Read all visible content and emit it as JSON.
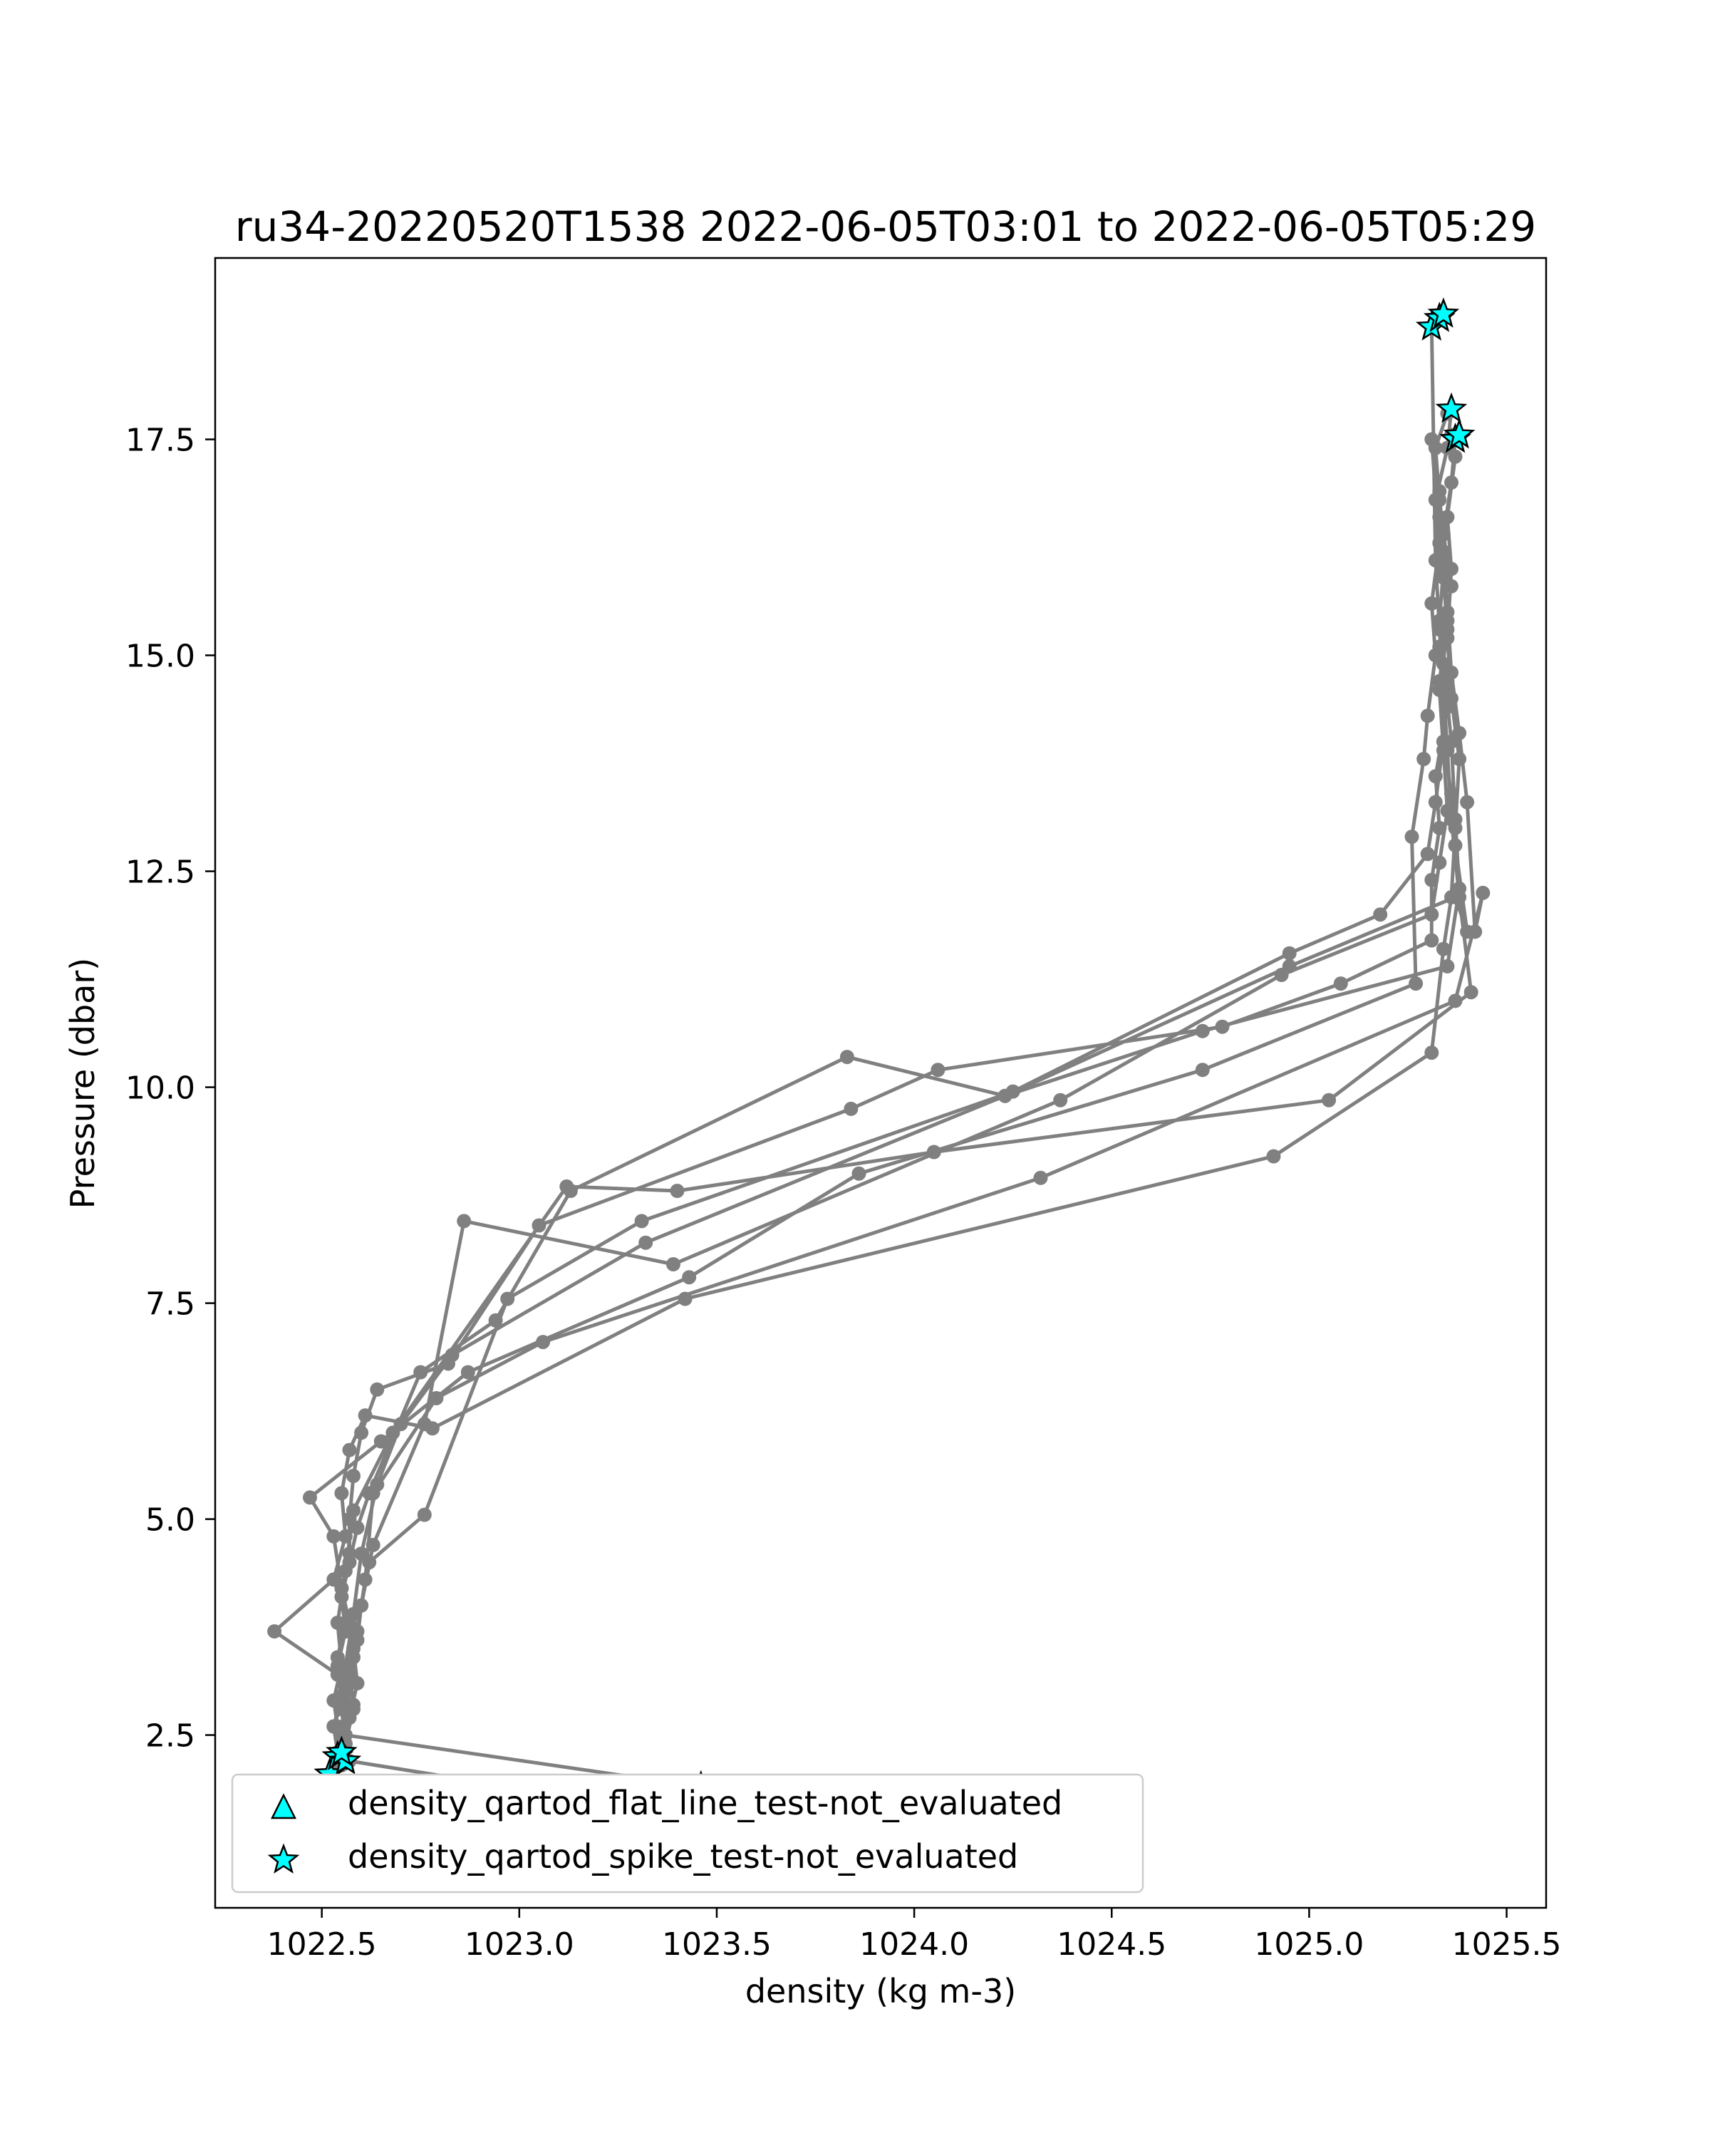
{
  "chart_data": {
    "type": "line",
    "title": "ru34-20220520T1538 2022-06-05T03:01 to 2022-06-05T05:29",
    "xlabel": "density (kg m-3)",
    "ylabel": "Pressure (dbar)",
    "xlim": [
      1022.23,
      1025.6
    ],
    "ylim": [
      19.6,
      0.5
    ],
    "y_inverted": true,
    "xticks": [
      "1022.5",
      "1023.0",
      "1023.5",
      "1024.0",
      "1024.5",
      "1025.0",
      "1025.5"
    ],
    "yticks": [
      "2.5",
      "5.0",
      "7.5",
      "10.0",
      "12.5",
      "15.0",
      "17.5"
    ],
    "legend": [
      {
        "label": "density_qartod_flat_line_test-not_evaluated",
        "marker": "triangle"
      },
      {
        "label": "density_qartod_spike_test-not_evaluated",
        "marker": "star"
      }
    ],
    "legend_position": "lower-left",
    "colors": {
      "profile": "#808080",
      "flag": "#00ffff",
      "flag_edge": "#000000"
    },
    "profiles": [
      {
        "x": [
          1023.32,
          1022.57,
          1022.56,
          1022.55,
          1022.56,
          1022.58,
          1022.57,
          1022.55,
          1022.57,
          1022.57,
          1022.58,
          1022.6,
          1022.64,
          1022.82,
          1023.05,
          1023.84,
          1024.06,
          1024.78,
          1025.08,
          1025.31,
          1025.31,
          1025.33,
          1025.32,
          1025.35,
          1025.33,
          1025.36,
          1025.34,
          1025.36,
          1025.37
        ],
        "y": [
          1.65,
          2.2,
          2.4,
          2.8,
          3.1,
          3.4,
          3.8,
          4.2,
          4.6,
          5.0,
          5.5,
          6.0,
          6.5,
          6.8,
          8.4,
          9.75,
          10.2,
          10.7,
          11.2,
          11.7,
          12.4,
          13.0,
          13.6,
          14.4,
          15.1,
          15.8,
          16.4,
          17.0,
          17.5
        ]
      },
      {
        "x": [
          1023.46,
          1022.56,
          1022.55,
          1022.54,
          1022.56,
          1022.55,
          1022.57,
          1022.59,
          1022.62,
          1022.75,
          1022.94,
          1023.13,
          1023.83,
          1024.23,
          1024.95,
          1025.37,
          1025.4,
          1025.37,
          1025.36,
          1025.34,
          1025.35,
          1025.33,
          1025.34,
          1025.32,
          1025.35,
          1025.36
        ],
        "y": [
          1.9,
          2.5,
          2.9,
          3.3,
          3.7,
          4.1,
          4.5,
          4.9,
          5.3,
          6.7,
          7.3,
          8.8,
          10.35,
          9.9,
          11.4,
          12.2,
          11.8,
          12.8,
          13.4,
          14.0,
          14.7,
          15.4,
          16.0,
          16.8,
          17.4,
          17.85
        ]
      },
      {
        "x": [
          1022.5,
          1022.55,
          1022.54,
          1022.53,
          1022.55,
          1022.54,
          1022.56,
          1022.58,
          1022.68,
          1023.12,
          1023.4,
          1024.05,
          1025.05,
          1025.41,
          1025.38,
          1025.36,
          1025.35,
          1025.34,
          1025.33,
          1025.32,
          1025.31,
          1025.34
        ],
        "y": [
          1.85,
          2.15,
          2.6,
          2.9,
          3.3,
          3.8,
          4.4,
          5.1,
          6.0,
          8.85,
          8.8,
          9.25,
          9.85,
          11.1,
          12.2,
          13.1,
          13.9,
          14.6,
          15.3,
          16.1,
          18.8,
          18.9
        ]
      },
      {
        "x": [
          1022.52,
          1022.54,
          1022.53,
          1022.56,
          1022.54,
          1022.38,
          1022.53,
          1022.56,
          1022.55,
          1022.57,
          1022.61,
          1022.78,
          1023.42,
          1024.91,
          1025.31,
          1025.34,
          1025.36,
          1025.37,
          1025.38,
          1025.36,
          1025.35,
          1025.36,
          1025.35,
          1025.37,
          1025.36
        ],
        "y": [
          2.05,
          2.3,
          2.6,
          3.0,
          3.2,
          3.7,
          4.3,
          4.8,
          5.3,
          5.8,
          6.2,
          6.05,
          7.55,
          9.2,
          10.4,
          11.6,
          12.2,
          13.0,
          13.8,
          14.5,
          15.2,
          16.0,
          16.6,
          17.3,
          17.55
        ]
      },
      {
        "x": [
          1022.55,
          1022.53,
          1022.55,
          1022.54,
          1022.56,
          1022.55,
          1022.53,
          1022.47,
          1022.65,
          1022.87,
          1023.43,
          1023.86,
          1024.73,
          1025.27,
          1025.26,
          1025.29,
          1025.3,
          1025.32,
          1025.31,
          1025.33,
          1025.31
        ],
        "y": [
          2.25,
          2.6,
          2.95,
          3.4,
          3.8,
          4.2,
          4.8,
          5.25,
          5.9,
          6.7,
          7.8,
          9.0,
          10.2,
          11.2,
          12.9,
          13.8,
          14.3,
          15.0,
          15.6,
          16.3,
          17.5
        ]
      },
      {
        "x": [
          1022.54,
          1022.56,
          1022.58,
          1022.57,
          1022.59,
          1022.6,
          1022.62,
          1022.76,
          1022.97,
          1023.31,
          1024.25,
          1024.95,
          1025.18,
          1025.3,
          1025.32,
          1025.34,
          1025.33,
          1025.35,
          1025.34,
          1025.33,
          1025.32,
          1025.35
        ],
        "y": [
          2.2,
          2.5,
          2.85,
          3.25,
          3.6,
          4.0,
          4.5,
          5.05,
          7.55,
          8.45,
          9.95,
          11.55,
          12.0,
          12.7,
          13.3,
          14.0,
          14.7,
          15.4,
          16.1,
          16.8,
          17.4,
          17.8
        ]
      },
      {
        "x": [
          1022.55,
          1022.57,
          1022.59,
          1022.58,
          1022.6,
          1022.63,
          1022.76,
          1022.86,
          1023.39,
          1024.37,
          1024.93,
          1025.31,
          1025.33,
          1025.35,
          1025.34,
          1025.33,
          1025.35,
          1025.34,
          1025.33
        ],
        "y": [
          2.3,
          2.7,
          3.1,
          3.5,
          4.0,
          4.7,
          6.1,
          8.45,
          7.95,
          9.85,
          11.3,
          12.0,
          12.6,
          13.2,
          13.9,
          14.6,
          15.3,
          15.9,
          16.6
        ]
      },
      {
        "x": [
          1022.56,
          1022.58,
          1022.57,
          1022.59,
          1022.61,
          1022.63,
          1022.79,
          1023.06,
          1024.32,
          1025.37,
          1025.44,
          1025.42,
          1025.4,
          1025.38,
          1025.36,
          1025.35,
          1025.34,
          1025.33
        ],
        "y": [
          2.4,
          2.8,
          3.2,
          3.7,
          4.3,
          5.3,
          6.4,
          7.05,
          8.95,
          11.0,
          12.25,
          11.8,
          13.3,
          14.1,
          14.8,
          15.5,
          16.2,
          16.9
        ]
      },
      {
        "x": [
          1022.53,
          1022.55,
          1022.57,
          1022.56,
          1022.58,
          1022.6,
          1022.64,
          1022.7,
          1022.83,
          1023.32,
          1024.23,
          1024.73,
          1025.35,
          1025.38,
          1025.37,
          1025.36,
          1025.34
        ],
        "y": [
          2.1,
          2.45,
          2.8,
          3.3,
          3.9,
          4.6,
          5.4,
          6.1,
          6.9,
          8.2,
          9.9,
          10.65,
          11.4,
          12.3,
          13.1,
          14.0,
          14.9
        ]
      }
    ],
    "spike_flags": {
      "x": [
        1023.32,
        1023.46,
        1022.5,
        1022.52,
        1022.54,
        1022.56,
        1022.55,
        1025.37,
        1025.38,
        1025.36,
        1025.31,
        1025.33,
        1025.34
      ],
      "y": [
        1.65,
        1.9,
        1.85,
        2.05,
        2.25,
        2.2,
        2.3,
        17.5,
        17.55,
        17.85,
        18.8,
        18.9,
        18.95
      ]
    }
  }
}
